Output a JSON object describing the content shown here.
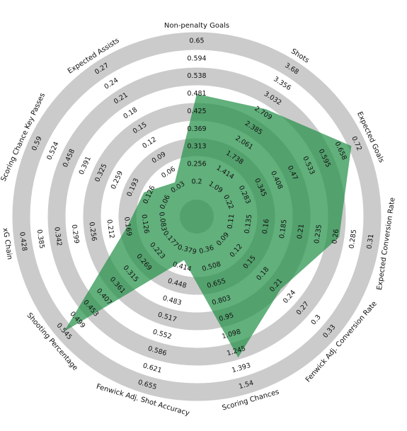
{
  "chart_data": {
    "type": "radar",
    "color": "#1f8f45",
    "axes": [
      {
        "name": "Non-penalty Goals",
        "rlim": [
          0.2,
          0.65
        ],
        "ticks": [
          0.2,
          0.256,
          0.313,
          0.369,
          0.425,
          0.481,
          0.538,
          0.594,
          0.65
        ],
        "value": 0.481
      },
      {
        "name": "Shots",
        "rlim": [
          1.09,
          3.68
        ],
        "ticks": [
          1.09,
          1.414,
          1.738,
          2.061,
          2.385,
          2.709,
          3.032,
          3.356,
          3.68
        ],
        "value": 2.8
      },
      {
        "name": "Expected Goals",
        "rlim": [
          0.22,
          0.72
        ],
        "ticks": [
          0.22,
          0.283,
          0.345,
          0.408,
          0.47,
          0.533,
          0.595,
          0.658,
          0.72
        ],
        "value": 0.7
      },
      {
        "name": "Expected Conversion Rate",
        "rlim": [
          0.11,
          0.31
        ],
        "ticks": [
          0.11,
          0.135,
          0.16,
          0.185,
          0.21,
          0.235,
          0.26,
          0.285,
          0.31
        ],
        "value": 0.265
      },
      {
        "name": "Fenwick Adj. Conversion Rate",
        "rlim": [
          0.09,
          0.33
        ],
        "ticks": [
          0.09,
          0.12,
          0.15,
          0.18,
          0.21,
          0.24,
          0.27,
          0.3,
          0.33
        ],
        "value": 0.22
      },
      {
        "name": "Scoring Chances",
        "rlim": [
          0.36,
          1.54
        ],
        "ticks": [
          0.36,
          0.508,
          0.655,
          0.803,
          0.95,
          1.098,
          1.245,
          1.393,
          1.54
        ],
        "value": 1.3
      },
      {
        "name": "Fenwick Adj. Shot Accuracy",
        "rlim": [
          0.379,
          0.655
        ],
        "ticks": [
          0.379,
          0.414,
          0.448,
          0.483,
          0.517,
          0.552,
          0.586,
          0.621,
          0.655
        ],
        "value": 0.4
      },
      {
        "name": "Shooting Percentage",
        "rlim": [
          0.177,
          0.545
        ],
        "ticks": [
          0.177,
          0.223,
          0.269,
          0.315,
          0.361,
          0.407,
          0.453,
          0.499,
          0.545
        ],
        "value": 0.545
      },
      {
        "name": "xG Chain",
        "rlim": [
          0.083,
          0.428
        ],
        "ticks": [
          0.083,
          0.126,
          0.169,
          0.212,
          0.256,
          0.299,
          0.342,
          0.385,
          0.428
        ],
        "value": 0.17
      },
      {
        "name": "Scoring Chance Key Passes",
        "rlim": [
          0.06,
          0.59
        ],
        "ticks": [
          0.06,
          0.126,
          0.193,
          0.259,
          0.325,
          0.391,
          0.458,
          0.524,
          0.59
        ],
        "value": 0.148
      },
      {
        "name": "Expected Assists",
        "rlim": [
          0.03,
          0.27
        ],
        "ticks": [
          0.03,
          0.06,
          0.09,
          0.12,
          0.15,
          0.18,
          0.21,
          0.24,
          0.27
        ],
        "value": 0.04
      }
    ]
  }
}
